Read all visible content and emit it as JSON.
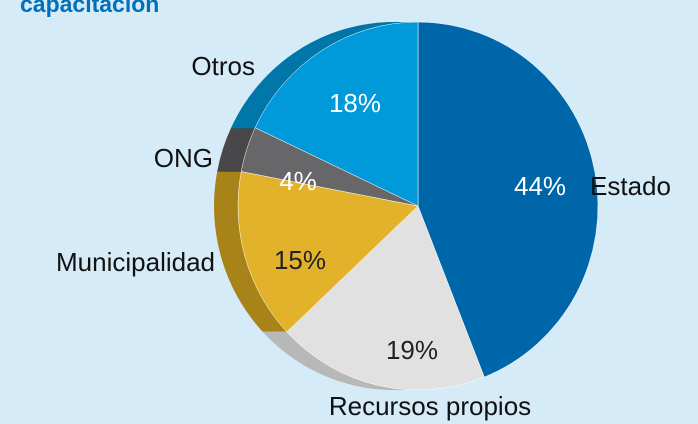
{
  "chart_data": {
    "type": "pie",
    "title": "capacitacion",
    "categories": [
      "Estado",
      "Recursos propios",
      "Municipalidad",
      "ONG",
      "Otros"
    ],
    "values": [
      44,
      19,
      15,
      4,
      18
    ],
    "value_labels": [
      "44%",
      "19%",
      "15%",
      "4%",
      "18%"
    ],
    "colors": [
      "#0066aa",
      "#e1e1e1",
      "#e3b22b",
      "#67676a",
      "#0099d9"
    ],
    "side_colors": [
      "#004f85",
      "#b8b8b8",
      "#a88318",
      "#48484a",
      "#0077a8"
    ]
  }
}
